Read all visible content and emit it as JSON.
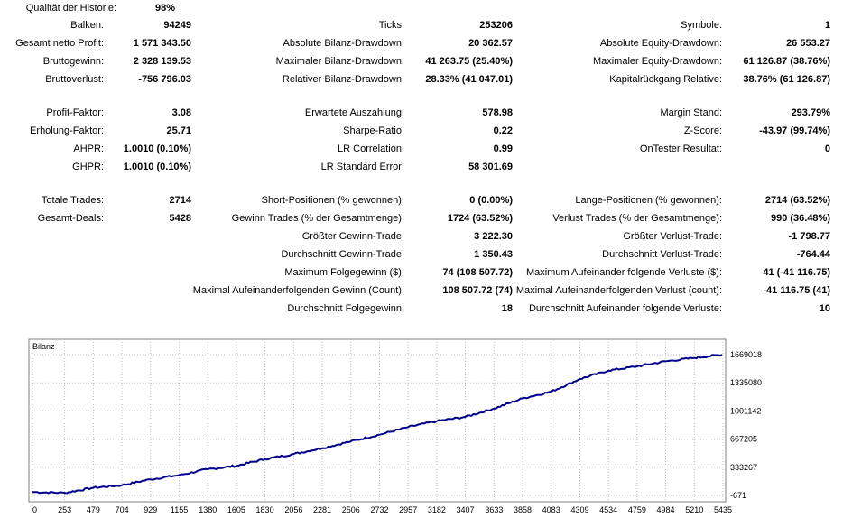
{
  "report": {
    "qualitaet": {
      "label": "Qualität der Historie:",
      "value": "98%"
    },
    "balken": {
      "label": "Balken:",
      "value": "94249"
    },
    "ticks": {
      "label": "Ticks:",
      "value": "253206"
    },
    "symbole": {
      "label": "Symbole:",
      "value": "1"
    },
    "netto_profit": {
      "label": "Gesamt netto Profit:",
      "value": "1 571 343.50"
    },
    "abs_bilanz_dd": {
      "label": "Absolute Bilanz-Drawdown:",
      "value": "20 362.57"
    },
    "abs_equity_dd": {
      "label": "Absolute Equity-Drawdown:",
      "value": "26 553.27"
    },
    "bruttogewinn": {
      "label": "Bruttogewinn:",
      "value": "2 328 139.53"
    },
    "max_bilanz_dd": {
      "label": "Maximaler Bilanz-Drawdown:",
      "value": "41 263.75 (25.40%)"
    },
    "max_equity_dd": {
      "label": "Maximaler Equity-Drawdown:",
      "value": "61 126.87 (38.76%)"
    },
    "bruttoverlust": {
      "label": "Bruttoverlust:",
      "value": "-756 796.03"
    },
    "rel_bilanz_dd": {
      "label": "Relativer Bilanz-Drawdown:",
      "value": "28.33% (41 047.01)"
    },
    "kapitalrueckgang": {
      "label": "Kapitalrückgang Relative:",
      "value": "38.76% (61 126.87)"
    },
    "profit_faktor": {
      "label": "Profit-Faktor:",
      "value": "3.08"
    },
    "erwartete_auszahlung": {
      "label": "Erwartete Auszahlung:",
      "value": "578.98"
    },
    "margin_stand": {
      "label": "Margin Stand:",
      "value": "293.79%"
    },
    "erholung_faktor": {
      "label": "Erholung-Faktor:",
      "value": "25.71"
    },
    "sharpe": {
      "label": "Sharpe-Ratio:",
      "value": "0.22"
    },
    "z_score": {
      "label": "Z-Score:",
      "value": "-43.97 (99.74%)"
    },
    "ahpr": {
      "label": "AHPR:",
      "value": "1.0010 (0.10%)"
    },
    "lr_correlation": {
      "label": "LR Correlation:",
      "value": "0.99"
    },
    "ontester": {
      "label": "OnTester Resultat:",
      "value": "0"
    },
    "ghpr": {
      "label": "GHPR:",
      "value": "1.0010 (0.10%)"
    },
    "lr_std_error": {
      "label": "LR Standard Error:",
      "value": "58 301.69"
    },
    "totale_trades": {
      "label": "Totale Trades:",
      "value": "2714"
    },
    "short_pos": {
      "label": "Short-Positionen (% gewonnen):",
      "value": "0 (0.00%)"
    },
    "lange_pos": {
      "label": "Lange-Positionen (% gewonnen):",
      "value": "2714 (63.52%)"
    },
    "gesamt_deals": {
      "label": "Gesamt-Deals:",
      "value": "5428"
    },
    "gewinn_trades": {
      "label": "Gewinn Trades (% der Gesamtmenge):",
      "value": "1724 (63.52%)"
    },
    "verlust_trades": {
      "label": "Verlust Trades (% der Gesamtmenge):",
      "value": "990 (36.48%)"
    },
    "groesster_gewinn": {
      "label": "Größter Gewinn-Trade:",
      "value": "3 222.30"
    },
    "groesster_verlust": {
      "label": "Größter Verlust-Trade:",
      "value": "-1 798.77"
    },
    "durchschnitt_gewinn": {
      "label": "Durchschnitt Gewinn-Trade:",
      "value": "1 350.43"
    },
    "durchschnitt_verlust": {
      "label": "Durchschnitt Verlust-Trade:",
      "value": "-764.44"
    },
    "max_folgegewinn": {
      "label": "Maximum Folgegewinn ($):",
      "value": "74 (108 507.72)"
    },
    "max_folgeverluste": {
      "label": "Maximum Aufeinander folgende Verluste ($):",
      "value": "41 (-41 116.75)"
    },
    "maximal_gewinn_count": {
      "label": "Maximal Aufeinanderfolgenden Gewinn (Count):",
      "value": "108 507.72 (74)"
    },
    "maximal_verlust_count": {
      "label": "Maximal Aufeinanderfolgenden Verlust (count):",
      "value": "-41 116.75 (41)"
    },
    "durchschnitt_folgegewinn": {
      "label": "Durchschnitt Folgegewinn:",
      "value": "18"
    },
    "durchschnitt_folgeverluste": {
      "label": "Durchschnitt Aufeinander folgende Verluste:",
      "value": "10"
    }
  },
  "chart_data": {
    "type": "line",
    "title": "Bilanz",
    "series_color": "#00008b",
    "xlim": [
      0,
      5428
    ],
    "ylim": [
      -671,
      1669018
    ],
    "x_ticks": [
      0,
      253,
      479,
      704,
      929,
      1155,
      1380,
      1605,
      1830,
      2056,
      2281,
      2506,
      2732,
      2957,
      3182,
      3407,
      3633,
      3858,
      4083,
      4309,
      4534,
      4759,
      4984,
      5210,
      5435
    ],
    "y_ticks": [
      1669018,
      1335080,
      1001142,
      667205,
      333267,
      -671
    ],
    "series": [
      {
        "name": "Bilanz",
        "x": [
          0,
          253,
          479,
          704,
          929,
          1155,
          1380,
          1605,
          1830,
          2056,
          2281,
          2506,
          2732,
          2957,
          3182,
          3407,
          3633,
          3858,
          4083,
          4309,
          4534,
          4759,
          4984,
          5210,
          5428
        ],
        "values": [
          40000,
          30000,
          90000,
          120000,
          190000,
          240000,
          310000,
          350000,
          430000,
          490000,
          560000,
          640000,
          720000,
          810000,
          880000,
          930000,
          1030000,
          1150000,
          1230000,
          1380000,
          1480000,
          1530000,
          1590000,
          1630000,
          1669018
        ]
      }
    ]
  }
}
